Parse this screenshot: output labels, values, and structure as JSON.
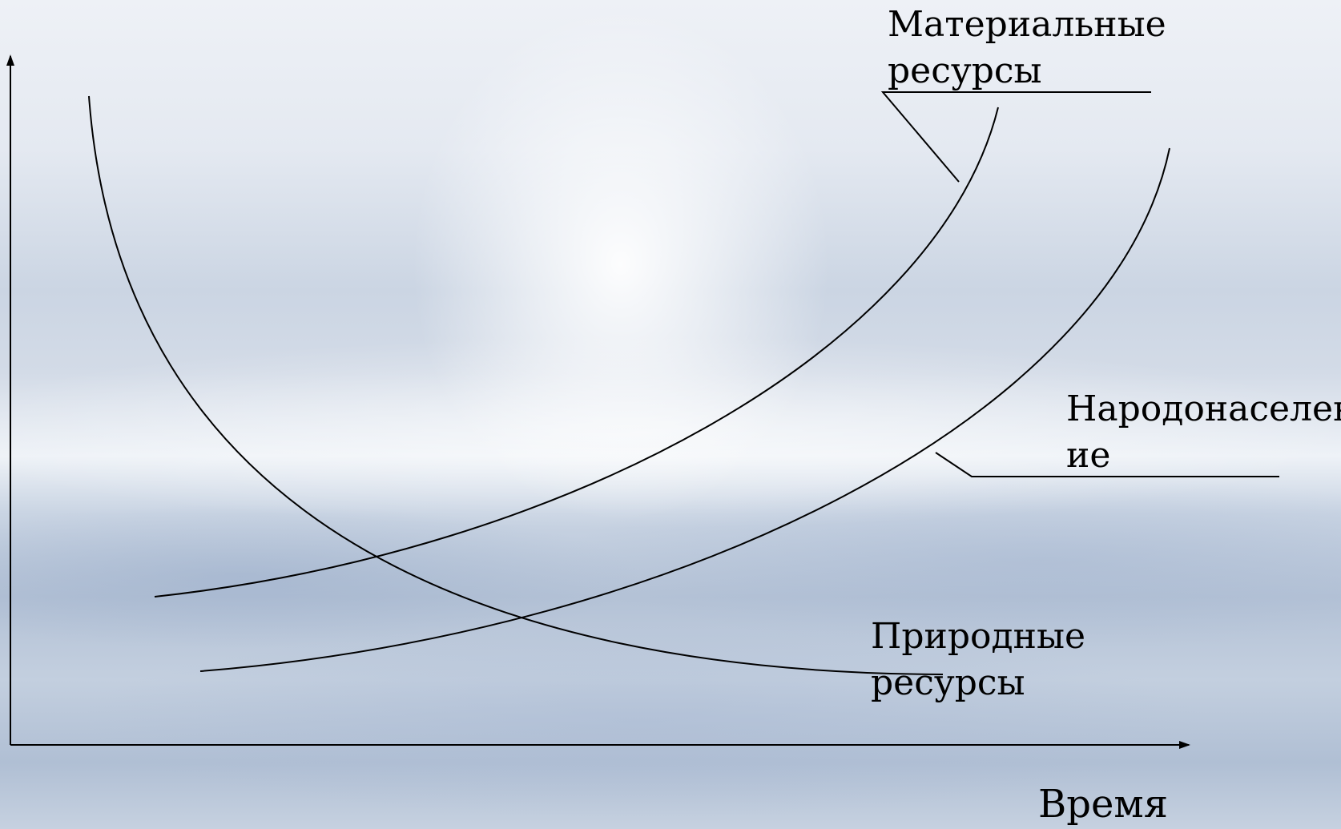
{
  "labels": {
    "material_resources": [
      "Материальные",
      "ресурсы"
    ],
    "population": [
      "Народонаселен",
      "ие"
    ],
    "natural_resources": [
      "Природные",
      "ресурсы"
    ],
    "x_axis": "Время"
  },
  "colors": {
    "line": "#000000",
    "text": "#000000"
  }
}
